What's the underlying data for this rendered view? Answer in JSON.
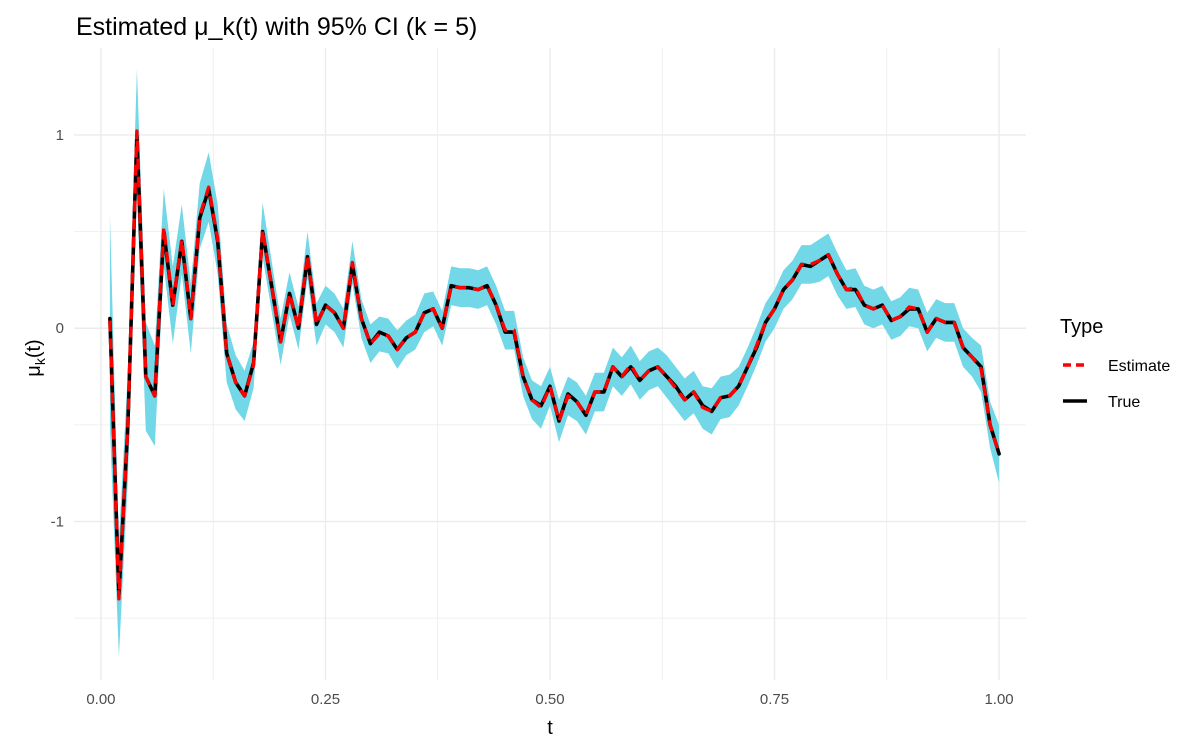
{
  "chart_data": {
    "type": "line",
    "title": "Estimated μ_k(t) with 95% CI (k = 5)",
    "xlabel": "t",
    "ylabel": "μ",
    "ylabel_subscript": "k",
    "ylabel_suffix": "(t)",
    "xlim": [
      -0.03,
      1.03
    ],
    "ylim": [
      -1.82,
      1.45
    ],
    "x_ticks": [
      0.0,
      0.25,
      0.5,
      0.75,
      1.0
    ],
    "x_tick_labels": [
      "0.00",
      "0.25",
      "0.50",
      "0.75",
      "1.00"
    ],
    "y_ticks": [
      -1,
      0,
      1
    ],
    "y_tick_labels": [
      "-1",
      "0",
      "1"
    ],
    "grid": true,
    "legend": {
      "title": "Type",
      "position": "right",
      "entries": [
        "Estimate",
        "True"
      ]
    },
    "colors": {
      "ci_band": "#72d7e6",
      "estimate": "#ff0000",
      "true": "#000000",
      "grid": "#ebebeb"
    },
    "series": [
      {
        "name": "True",
        "x": [
          0.01,
          0.02,
          0.03,
          0.04,
          0.05,
          0.06,
          0.07,
          0.08,
          0.09,
          0.1,
          0.11,
          0.12,
          0.13,
          0.14,
          0.15,
          0.16,
          0.17,
          0.18,
          0.19,
          0.2,
          0.21,
          0.22,
          0.23,
          0.24,
          0.25,
          0.26,
          0.27,
          0.28,
          0.29,
          0.3,
          0.31,
          0.32,
          0.33,
          0.34,
          0.35,
          0.36,
          0.37,
          0.38,
          0.39,
          0.4,
          0.41,
          0.42,
          0.43,
          0.44,
          0.45,
          0.46,
          0.47,
          0.48,
          0.49,
          0.5,
          0.51,
          0.52,
          0.53,
          0.54,
          0.55,
          0.56,
          0.57,
          0.58,
          0.59,
          0.6,
          0.61,
          0.62,
          0.63,
          0.64,
          0.65,
          0.66,
          0.67,
          0.68,
          0.69,
          0.7,
          0.71,
          0.72,
          0.73,
          0.74,
          0.75,
          0.76,
          0.77,
          0.78,
          0.79,
          0.8,
          0.81,
          0.82,
          0.83,
          0.84,
          0.85,
          0.86,
          0.87,
          0.88,
          0.89,
          0.9,
          0.91,
          0.92,
          0.93,
          0.94,
          0.95,
          0.96,
          0.97,
          0.98,
          0.99,
          1.0
        ],
        "values": [
          0.05,
          -1.38,
          -0.5,
          1.0,
          -0.25,
          -0.35,
          0.5,
          0.12,
          0.45,
          0.05,
          0.57,
          0.72,
          0.45,
          -0.13,
          -0.28,
          -0.35,
          -0.18,
          0.5,
          0.22,
          -0.07,
          0.18,
          0.0,
          0.37,
          0.02,
          0.12,
          0.08,
          0.0,
          0.33,
          0.05,
          -0.08,
          -0.02,
          -0.04,
          -0.11,
          -0.05,
          -0.02,
          0.08,
          0.1,
          0.0,
          0.22,
          0.21,
          0.21,
          0.2,
          0.22,
          0.12,
          -0.02,
          -0.02,
          -0.25,
          -0.37,
          -0.4,
          -0.3,
          -0.48,
          -0.34,
          -0.38,
          -0.45,
          -0.33,
          -0.33,
          -0.2,
          -0.25,
          -0.2,
          -0.27,
          -0.22,
          -0.2,
          -0.25,
          -0.3,
          -0.37,
          -0.33,
          -0.4,
          -0.43,
          -0.36,
          -0.35,
          -0.3,
          -0.2,
          -0.1,
          0.03,
          0.1,
          0.2,
          0.25,
          0.33,
          0.32,
          0.35,
          0.38,
          0.28,
          0.2,
          0.2,
          0.12,
          0.1,
          0.12,
          0.04,
          0.06,
          0.1,
          0.1,
          -0.02,
          0.05,
          0.03,
          0.03,
          -0.1,
          -0.15,
          -0.2,
          -0.5,
          -0.65
        ]
      },
      {
        "name": "Estimate",
        "values": [
          0.04,
          -1.4,
          -0.5,
          1.02,
          -0.25,
          -0.35,
          0.52,
          0.12,
          0.46,
          0.05,
          0.58,
          0.73,
          0.46,
          -0.13,
          -0.28,
          -0.35,
          -0.19,
          0.51,
          0.22,
          -0.07,
          0.18,
          0.0,
          0.38,
          0.02,
          0.12,
          0.08,
          0.0,
          0.34,
          0.05,
          -0.08,
          -0.03,
          -0.04,
          -0.11,
          -0.05,
          -0.02,
          0.08,
          0.1,
          0.0,
          0.22,
          0.21,
          0.21,
          0.2,
          0.22,
          0.12,
          -0.01,
          -0.01,
          -0.25,
          -0.37,
          -0.41,
          -0.3,
          -0.48,
          -0.35,
          -0.38,
          -0.45,
          -0.33,
          -0.33,
          -0.2,
          -0.25,
          -0.19,
          -0.27,
          -0.22,
          -0.2,
          -0.25,
          -0.31,
          -0.37,
          -0.33,
          -0.41,
          -0.43,
          -0.36,
          -0.35,
          -0.3,
          -0.2,
          -0.09,
          0.03,
          0.1,
          0.2,
          0.25,
          0.33,
          0.33,
          0.35,
          0.38,
          0.28,
          0.2,
          0.21,
          0.12,
          0.1,
          0.12,
          0.04,
          0.06,
          0.11,
          0.1,
          -0.02,
          0.05,
          0.03,
          0.03,
          -0.1,
          -0.15,
          -0.21,
          -0.5,
          -0.65
        ],
        "ci_half_width": [
          0.55,
          0.3,
          0.28,
          0.32,
          0.28,
          0.26,
          0.2,
          0.2,
          0.18,
          0.18,
          0.17,
          0.18,
          0.18,
          0.15,
          0.14,
          0.13,
          0.12,
          0.14,
          0.13,
          0.12,
          0.11,
          0.11,
          0.12,
          0.11,
          0.1,
          0.1,
          0.1,
          0.11,
          0.1,
          0.1,
          0.09,
          0.09,
          0.1,
          0.09,
          0.09,
          0.1,
          0.09,
          0.09,
          0.1,
          0.1,
          0.1,
          0.1,
          0.1,
          0.1,
          0.1,
          0.1,
          0.1,
          0.1,
          0.11,
          0.1,
          0.11,
          0.1,
          0.1,
          0.1,
          0.1,
          0.1,
          0.1,
          0.1,
          0.1,
          0.1,
          0.1,
          0.1,
          0.11,
          0.11,
          0.11,
          0.11,
          0.11,
          0.12,
          0.11,
          0.11,
          0.1,
          0.1,
          0.1,
          0.1,
          0.1,
          0.1,
          0.1,
          0.1,
          0.1,
          0.11,
          0.11,
          0.11,
          0.1,
          0.1,
          0.1,
          0.1,
          0.1,
          0.1,
          0.1,
          0.1,
          0.1,
          0.1,
          0.1,
          0.1,
          0.1,
          0.1,
          0.1,
          0.12,
          0.12,
          0.15
        ]
      }
    ]
  }
}
